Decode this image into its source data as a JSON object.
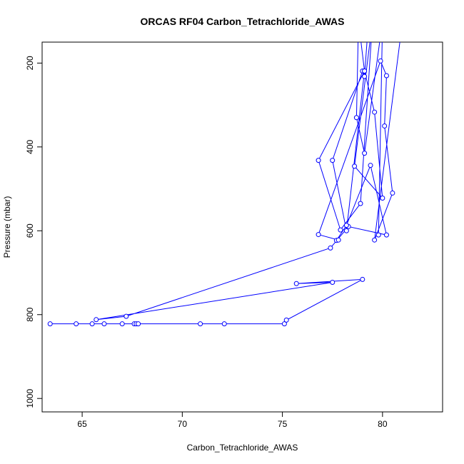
{
  "chart_data": {
    "type": "line",
    "title": "ORCAS RF04 Carbon_Tetrachloride_AWAS",
    "xlabel": "Carbon_Tetrachloride_AWAS",
    "ylabel": "Pressure (mbar)",
    "xlim": [
      63,
      83
    ],
    "ylim": [
      1032,
      150
    ],
    "y_reversed": true,
    "x_ticks": [
      65,
      70,
      75,
      80
    ],
    "y_ticks": [
      200,
      400,
      600,
      800,
      1000
    ],
    "grid": false,
    "legend": "none",
    "series": [
      {
        "color": "#0000ff",
        "marker": "open-circle",
        "points": [
          [
            63.4,
            822
          ],
          [
            64.7,
            822
          ],
          [
            65.5,
            822
          ],
          [
            66.1,
            822
          ],
          [
            67.0,
            822
          ],
          [
            67.6,
            822
          ],
          [
            67.7,
            822
          ],
          [
            67.8,
            822
          ],
          [
            70.9,
            822
          ],
          [
            72.1,
            822
          ],
          [
            75.1,
            822
          ],
          [
            75.2,
            813
          ],
          [
            79.0,
            716
          ],
          [
            75.7,
            726
          ],
          [
            77.5,
            723
          ],
          [
            65.7,
            812
          ],
          [
            67.2,
            804
          ],
          [
            77.4,
            641
          ],
          [
            78.3,
            590
          ],
          [
            80.2,
            610
          ],
          [
            79.4,
            444
          ],
          [
            78.2,
            587
          ],
          [
            77.7,
            623
          ],
          [
            77.8,
            622
          ],
          [
            76.8,
            609
          ],
          [
            79.9,
            195
          ],
          [
            80.2,
            230
          ],
          [
            80.1,
            350
          ],
          [
            80.5,
            510
          ],
          [
            79.6,
            622
          ],
          [
            81.0,
            100
          ],
          [
            79.3,
            100
          ],
          [
            79.1,
            232
          ],
          [
            79.0,
            219
          ],
          [
            77.5,
            432
          ],
          [
            78.2,
            600
          ],
          [
            79.1,
            219
          ],
          [
            79.6,
            317
          ],
          [
            80.0,
            522
          ],
          [
            78.6,
            446
          ],
          [
            79.5,
            100
          ],
          [
            78.9,
            535
          ],
          [
            77.9,
            598
          ],
          [
            76.8,
            432
          ],
          [
            79.1,
            219
          ],
          [
            78.8,
            100
          ],
          [
            78.7,
            330
          ],
          [
            79.1,
            415
          ],
          [
            80.0,
            100
          ],
          [
            79.8,
            610
          ]
        ]
      }
    ]
  }
}
